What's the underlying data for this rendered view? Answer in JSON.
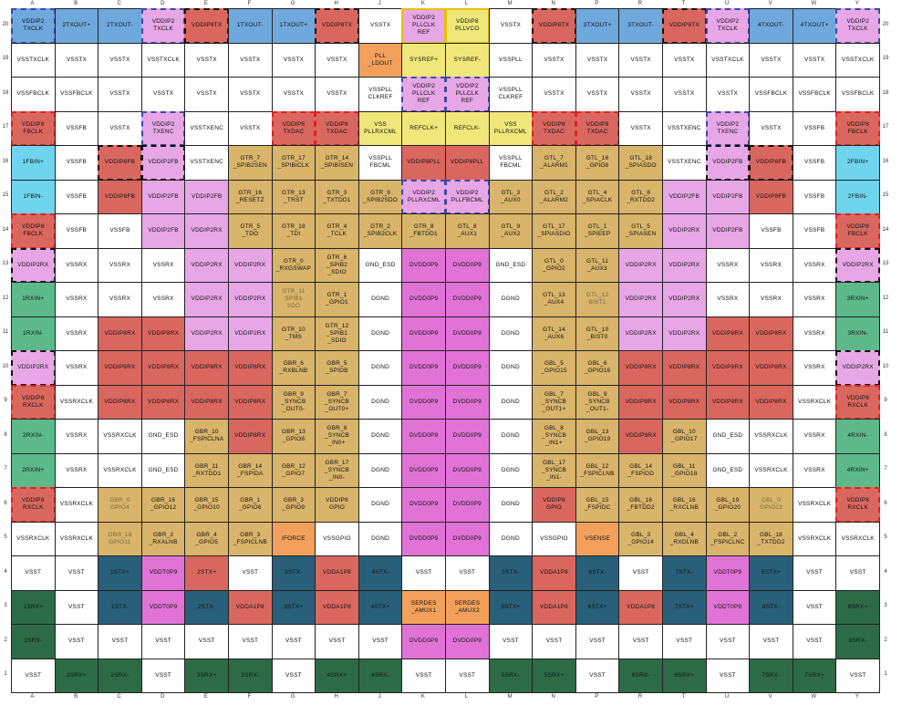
{
  "columns": [
    "A",
    "B",
    "C",
    "D",
    "E",
    "F",
    "G",
    "H",
    "J",
    "K",
    "L",
    "M",
    "N",
    "P",
    "R",
    "T",
    "U",
    "V",
    "W",
    "Y"
  ],
  "rows": [
    "20",
    "19",
    "18",
    "17",
    "16",
    "15",
    "14",
    "13",
    "12",
    "11",
    "10",
    "9",
    "8",
    "7",
    "6",
    "5",
    "4",
    "3",
    "2",
    "1"
  ],
  "colors": {
    "w": "#ffffff",
    "bl": "#6fa8dc",
    "pk": "#e7a6e6",
    "rd": "#d9675f",
    "ye": "#f0e77a",
    "or": "#f2a05b",
    "cy": "#6fd4ee",
    "ta": "#d9b46b",
    "mg": "#e173d6",
    "gr": "#5db98a",
    "tl": "#2a5f7a",
    "dg": "#2d6b46"
  },
  "cells": [
    [
      "VDDIP2\nTXCLK",
      "2TXOUT+",
      "2TXOUT-",
      "VDDIP2\nTXCLK",
      "VDDIP8TX",
      "1TXOUT-",
      "1TXOUT+",
      "VDDIP8TX",
      "VSSTX",
      "VDDIP2\nPLLCLK\nREF",
      "VDDIP8\nPLLVCO",
      "VSSTX",
      "VDDIP8TX",
      "3TXOUT+",
      "3TXOUT-",
      "VDDIP8TX",
      "VDDIP2\nTXCLK",
      "4TXOUT-",
      "4TXOUT+",
      "VDDIP2\nTXCLK"
    ],
    [
      "VSSTXCLK",
      "VSSTX",
      "VSSTX",
      "VSSTXCLK",
      "VSSTX",
      "VSSTX",
      "VSSTX",
      "VSSTX",
      "PLL\n_LDOUT",
      "SYSREF+",
      "SYSREF-",
      "VSSPLL",
      "VSSTX",
      "VSSTX",
      "VSSTX",
      "VSSTX",
      "VSSTXCLK",
      "VSSTX",
      "VSSTX",
      "VSSTXCLK"
    ],
    [
      "VSSFBCLK",
      "VSSFBCLK",
      "VSSTX",
      "VSSTX",
      "VSSTX",
      "VSSTX",
      "VSSTX",
      "VSSTX",
      "VSSPLL\nCLKREF",
      "VDDIP2\nPLLCLK\nREF",
      "VDDIP2\nPLLCLK\nREF",
      "VSSPLL\nCLKREF",
      "VSSTX",
      "VSSTX",
      "VSSTX",
      "VSSTX",
      "VSSTX",
      "VSSFBCLK",
      "VSSFBCLK",
      "VSSFBCLK"
    ],
    [
      "VDDIP8\nFBCLK",
      "VSSFB",
      "VSSTX",
      "VDDIP2\nTXENC",
      "VSSTXENC",
      "VSSTX",
      "VDDIP8\nTXDAC",
      "VDDIP8\nTXDAC",
      "VSS\nPLLRXCML",
      "REFCLK+",
      "REFCLK-",
      "VSS\nPLLRXCML",
      "VDDIP8\nTXDAC",
      "VDDIP8\nTXDAC",
      "VSSTX",
      "VSSTXENC",
      "VDDIP2\nTXENC",
      "VSSTX",
      "VSSFB",
      "VDDIP8\nFBCLK"
    ],
    [
      "1FBIN+",
      "VSSFB",
      "VDDIP8FB",
      "VDDIP2FB",
      "VSSTXENC",
      "GTR_7\n_SPIB2SEN",
      "GTR_17\n_SPIBICLK",
      "GTR_14\n_SPIBISEN",
      "VSSPLL\nFBCML",
      "VDDIP8PLL",
      "VDDIP8PLL",
      "VSSPLL\nFBCML",
      "GTL_7\n_ALARM1",
      "GTL_16\n_GPIO8",
      "GTL_18\n_SPIASDO",
      "VSSTXENC",
      "VDDIP2FB",
      "VDDIP8FB",
      "VSSFB",
      "2FBIN+"
    ],
    [
      "1FBIN-",
      "VSSFB",
      "VDDIP8FB",
      "VDDIP2FB",
      "VDDIP2FB",
      "GTR_16\n_RESETZ",
      "GTR_13\n_TRST",
      "GTR_3\n_TXTDD1",
      "GTR_9\n_SPIB2SDO",
      "VDDIP2\nPLLRXCML",
      "VDDIP2\nPLLFBCML",
      "GTL_3\n_AUX0",
      "GTL_2\n_ALARM2",
      "GTL_4\n_SPIACLK",
      "GTL_8\n_RXTDD2",
      "VDDIP2FB",
      "VDDIP2FB",
      "VDDIP8FB",
      "VSSFB",
      "2FBIN-"
    ],
    [
      "VDDIP8\nFBCLK",
      "VSSFB",
      "VSSFB",
      "VDDIP2FB",
      "VDDIP2RX",
      "GTR_5\n_TDO",
      "GTR_18\n_TDI",
      "GTR_4\n_TCLK",
      "GTR_2\n_SPIB2CLK",
      "GTR_8\n_FBTDD1",
      "GTL_8\n_AUX1",
      "GTL_9\n_AUX2",
      "GTL_17\n_SPIASDIO",
      "GTL_1\n_SPIEEP",
      "GTL_5\n_SPIASEN",
      "VDDIP2RX",
      "VDDIP2FB",
      "VSSFB",
      "VSSFB",
      "VDDIP8\nFBCLK"
    ],
    [
      "VDDIP2RX",
      "VSSRX",
      "VSSRX",
      "VSSRX",
      "VDDIP2RX",
      "VDDIP2RX",
      "GTR_0\n_RXGSWAP",
      "GTR_6\n_SPIB2\n_SDIO",
      "GND_ESD",
      "DVDD0P9",
      "DVDD0P9",
      "GND_ESD",
      "GTL_0\n_GPIO2",
      "GTL_11\n_AUX3",
      "VDDIP2RX",
      "VDDIP2RX",
      "VSSRX",
      "VSSRX",
      "VSSRX",
      "VDDIP2RX"
    ],
    [
      "1RXIN+",
      "VSSRX",
      "VSSRX",
      "VSSRX",
      "VDDIP2RX",
      "VDDIP2RX",
      "GTR_11\nSPIB1\nSDO",
      "GTR_1\n_GPIO1",
      "DGND",
      "DVDD0P9",
      "DVDD0P9",
      "DGND",
      "GTL_13\n_AUX4",
      "GTL_12\nBIST1",
      "VDDIP2RX",
      "VDDIP2RX",
      "VSSRX",
      "VSSRX",
      "VSSRX",
      "3RXIN+"
    ],
    [
      "1RXIN-",
      "VSSRX",
      "VDDIP8RX",
      "VDDIP8RX",
      "VDDIP2RX",
      "VDDIP2RX",
      "GTR_10\n_TMS",
      "GTR_12\n_SPIB1\n_SDIO",
      "DGND",
      "DVDD0P9",
      "DVDD0P9",
      "DGND",
      "GTL_14\n_AUX6",
      "GTL_10\n_BIST0",
      "VDDIP2RX",
      "VDDIP2RX",
      "VDDIP8RX",
      "VDDIP8RX",
      "VSSRX",
      "3RXIN-"
    ],
    [
      "VDDIP2RX",
      "VSSRX",
      "VDDIP8RX",
      "VDDIP8RX",
      "VDDIP8RX",
      "VDDIP8RX",
      "GBR_6\n_RXBLNB",
      "GBR_5\n_SPIDB",
      "DGND",
      "DVDD0P9",
      "DVDD0P9",
      "DGND",
      "GBL_5\n_GPIO15",
      "GBL_6\n_GPIO16",
      "VDDIP8RX",
      "VDDIP8RX",
      "VDDIP8RX",
      "VDDIP8RX",
      "VSSRX",
      "VDDIP2RX"
    ],
    [
      "VDDIP8\nRXCLK",
      "VSSRXCLK",
      "VDDIP8RX",
      "VDDIP8RX",
      "VDDIP8RX",
      "VDDIP8RX",
      "GBR_9\n_SYNCB\n_OUT0-",
      "GBR_7\n_SYNCB\n_OUT0+",
      "DGND",
      "DVDD0P9",
      "DVDD0P9",
      "DGND",
      "GBL_7\n_SYNCB\n_OUT1+",
      "GBL_9\n_SYNCB\n_OUT1-",
      "VDDIP8RX",
      "VDDIP8RX",
      "VDDIP8RX",
      "VDDIP8RX",
      "VSSRXCLK",
      "VDDIP8\nRXCLK"
    ],
    [
      "2RXIN-",
      "VSSRX",
      "VSSRXCLK",
      "GND_ESD",
      "GBR_10\n_FSPICLNA",
      "VDDIP8RX",
      "GBR_13\n_GPIO8",
      "GBR_8\n_SYNCB\n_IN0+",
      "DGND",
      "DVDD0P9",
      "DVDD0P9",
      "DGND",
      "GBL_8\n_SYNCB\n_IN1+",
      "GBL_13\n_GPIO19",
      "VDDIP8RX",
      "GBL_10\n_GPIO17",
      "GND_ESD",
      "VSSRXCLK",
      "VSSRX",
      "4RXIN-"
    ],
    [
      "2RXIN+",
      "VSSRX",
      "VSSRXCLK",
      "GND_ESD",
      "GBR_11\n_RXTDD1",
      "GBR_14\n_FSPIDA",
      "GBR_12\n_GPIO7",
      "GBR_17\n_SYNCB\n_IN0-",
      "DGND",
      "DVDD0P9",
      "DVDD0P9",
      "DGND",
      "GBL_17\n_SYNCB\n_IN1-",
      "GBL_12\n_FSPICLNB",
      "GBL_14\n_FSPIDD",
      "GBL_11\n_GPIO18",
      "GND_ESD",
      "VSSRXCLK",
      "VSSRX",
      "4RXIN+"
    ],
    [
      "VDDIP8\nRXCLK",
      "VSSRXCLK",
      "GBR_0\nGPIO4",
      "GBR_16\n_GPIO12",
      "GBR_15\n_GPIO10",
      "GBR_1\n_GPIO6",
      "GBR_3\n_GPIO9",
      "VDDIP8\nGPIO",
      "DGND",
      "DVDD0P9",
      "DVDD0P9",
      "DGND",
      "VDDIP8\nGPIO",
      "GBL_15\n_FSPIDC",
      "GBL_16\n_FBTDD2",
      "GBL_16\n_RXCLNB",
      "GBL_19\n_GPIO20",
      "GBL_0\nGPIO13",
      "VSSRXCLK",
      "VDDIP8\nRXCLK"
    ],
    [
      "VSSRXCLK",
      "VSSRXCLK",
      "GBR_18\nGPIO11",
      "GBR_2\n_RXALNB",
      "GBR_4\n_GPIO5",
      "GBR_3\n_FSPICLNB",
      "IFORCE",
      "VSSGPIO",
      "DGND",
      "DVDD0P9",
      "DVDD0P9",
      "DGND",
      "VSSGPIO",
      "VSENSE",
      "GBL_3\n_GPIO14",
      "GBL_4\n_RXDLNB",
      "GBL_2\n_FSPICLNC",
      "GBL_18\n_TXTDD2",
      "VSSRXCLK",
      "VSSRXCLK"
    ],
    [
      "VSST",
      "VSST",
      "1STX+",
      "VDDT0P9",
      "2STX+",
      "VSST",
      "3STX-",
      "VDDA1P8",
      "4STX-",
      "VSST",
      "VSST",
      "5STX-",
      "VDDA1P8",
      "6STX-",
      "VSST",
      "7STX-",
      "VDDT0P9",
      "8STX+",
      "VSST",
      "VSST"
    ],
    [
      "1SRX+",
      "VSST",
      "1STX-",
      "VDDT0P9",
      "2STX-",
      "VDDA1P8",
      "3STX+",
      "VDDA1P8",
      "4STX+",
      "SERDES\n_AMUX1",
      "SERDES\n_AMUX2",
      "5STX+",
      "VDDA1P8",
      "6STX+",
      "VDDA1P8",
      "7STX+",
      "VDDT0P9",
      "8STX-",
      "VSST",
      "8SRX+"
    ],
    [
      "1SRX-",
      "VSST",
      "VSST",
      "VSST",
      "VSST",
      "VSST",
      "VSST",
      "VSST",
      "VSST",
      "DVDD0P9",
      "DVDD0P9",
      "VSST",
      "VSST",
      "VSST",
      "VSST",
      "VSST",
      "VSST",
      "VSST",
      "VSST",
      "8SRX-"
    ],
    [
      "VSST",
      "2SRX+",
      "2SRX-",
      "VSST",
      "3SRX+",
      "3SRX-",
      "VSST",
      "4SRX+",
      "4SRX-",
      "VSST",
      "VSST",
      "5SRX-",
      "5SRX+",
      "VSST",
      "6SRX-",
      "6SRX+",
      "VSST",
      "7SRX-",
      "7SRX+",
      "VSST"
    ]
  ]
}
